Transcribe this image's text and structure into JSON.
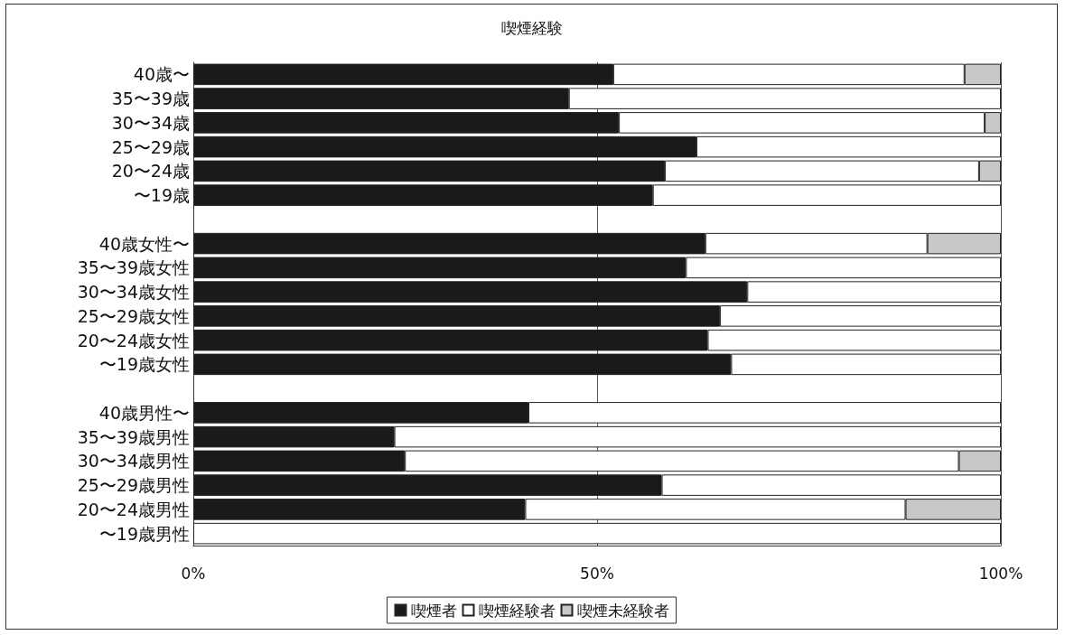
{
  "chart_data": {
    "type": "bar",
    "title": "喫煙経験",
    "orientation": "horizontal",
    "stacked": true,
    "categories": [
      "40歳〜",
      "35〜39歳",
      "30〜34歳",
      "25〜29歳",
      "20〜24歳",
      "〜19歳",
      null,
      "40歳女性〜",
      "35〜39歳女性",
      "30〜34歳女性",
      "25〜29歳女性",
      "20〜24歳女性",
      "〜19歳女性",
      null,
      "40歳男性〜",
      "35〜39歳男性",
      "30〜34歳男性",
      "25〜29歳男性",
      "20〜24歳男性",
      "〜19歳男性"
    ],
    "series": [
      {
        "name": "喫煙者",
        "color": "#1a1a1a",
        "values": [
          52.0,
          46.5,
          52.7,
          62.3,
          58.4,
          56.9,
          null,
          63.4,
          61.0,
          68.6,
          65.2,
          63.7,
          66.6,
          null,
          41.5,
          24.9,
          26.2,
          58.0,
          41.1,
          0
        ]
      },
      {
        "name": "喫煙経験者",
        "color": "#ffffff",
        "values": [
          43.5,
          53.5,
          45.3,
          37.7,
          38.9,
          43.1,
          null,
          27.5,
          39.0,
          31.4,
          34.8,
          36.3,
          33.4,
          null,
          58.5,
          75.1,
          68.6,
          42.0,
          47.1,
          100
        ]
      },
      {
        "name": "喫煙未経験者",
        "color": "#c8c8c8",
        "values": [
          4.5,
          0,
          2.0,
          0,
          2.7,
          0,
          null,
          9.1,
          0,
          0,
          0,
          0,
          0,
          null,
          0,
          0,
          5.2,
          0,
          11.8,
          0
        ]
      }
    ],
    "xlim": [
      0,
      100
    ],
    "xticks": [
      {
        "value": 0,
        "label": "0%"
      },
      {
        "value": 50,
        "label": "50%"
      },
      {
        "value": 100,
        "label": "100%"
      }
    ],
    "grid": "x",
    "legend": "bottom"
  }
}
